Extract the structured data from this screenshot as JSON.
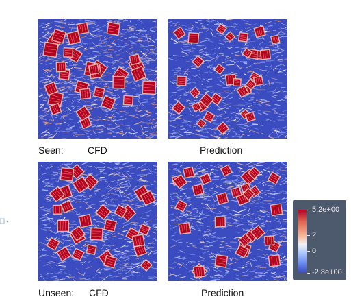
{
  "labels": {
    "seen": "Seen:",
    "seen_cfd": "CFD",
    "seen_prediction": "Prediction",
    "unseen": "Unseen:",
    "unseen_cfd": "CFD",
    "unseen_prediction": "Prediction"
  },
  "colorbar": {
    "max_label": "5.2e+00",
    "mid_label": "2",
    "zero_label": "0",
    "min_label": "-2.8e+00",
    "max_value": 5.2,
    "min_value": -2.8,
    "colors": {
      "high": "#b40426",
      "mid": "#f1f1f1",
      "low": "#3b4cc0"
    }
  },
  "side_icon": "chevron-down-icon"
}
